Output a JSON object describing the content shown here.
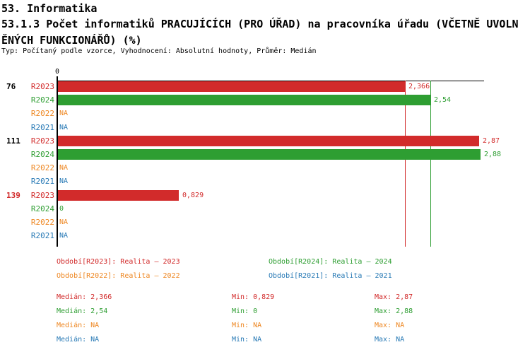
{
  "header": {
    "section": "53. Informatika",
    "title_line1": "53.1.3 Počet informatiků PRACUJÍCÍCH (PRO ÚŘAD) na pracovníka úřadu (VČETNĚ UVOLN",
    "title_line2": "ĚNÝCH FUNKCIONÁŘŮ) (%)",
    "meta": "Typ: Počítaný podle vzorce, Vyhodnocení: Absolutní hodnoty, Průměr: Medián"
  },
  "colors": {
    "R2023": "#d22b2b",
    "R2024": "#2e9e32",
    "R2022": "#ee8722",
    "R2021": "#2779b5",
    "axis": "#000000"
  },
  "chart_data": {
    "type": "bar",
    "orientation": "horizontal",
    "title": "53.1.3 Počet informatiků PRACUJÍCÍCH (PRO ÚŘAD) na pracovníka úřadu (VČETNĚ UVOLNĚNÝCH FUNKCIONÁŘŮ) (%)",
    "x_axis": {
      "zero_label": "0",
      "xlim": [
        0,
        2.88
      ],
      "grid": false
    },
    "series_order": [
      "R2023",
      "R2024",
      "R2022",
      "R2021"
    ],
    "groups": [
      {
        "label": "76",
        "label_color": "#000000",
        "rows": [
          {
            "series": "R2023",
            "value": 2.366,
            "display": "2,366"
          },
          {
            "series": "R2024",
            "value": 2.54,
            "display": "2,54"
          },
          {
            "series": "R2022",
            "value": null,
            "display": "NA"
          },
          {
            "series": "R2021",
            "value": null,
            "display": "NA"
          }
        ]
      },
      {
        "label": "111",
        "label_color": "#000000",
        "rows": [
          {
            "series": "R2023",
            "value": 2.87,
            "display": "2,87"
          },
          {
            "series": "R2024",
            "value": 2.88,
            "display": "2,88"
          },
          {
            "series": "R2022",
            "value": null,
            "display": "NA"
          },
          {
            "series": "R2021",
            "value": null,
            "display": "NA"
          }
        ]
      },
      {
        "label": "139",
        "label_color": "#d22b2b",
        "rows": [
          {
            "series": "R2023",
            "value": 0.829,
            "display": "0,829"
          },
          {
            "series": "R2024",
            "value": 0,
            "display": "0"
          },
          {
            "series": "R2022",
            "value": null,
            "display": "NA"
          },
          {
            "series": "R2021",
            "value": null,
            "display": "NA"
          }
        ]
      }
    ],
    "median_lines": [
      {
        "series": "R2023",
        "value": 2.366
      },
      {
        "series": "R2024",
        "value": 2.54
      }
    ]
  },
  "legend": {
    "items": [
      {
        "series": "R2023",
        "text": "Období[R2023]: Realita – 2023",
        "col": 0,
        "row": 0
      },
      {
        "series": "R2024",
        "text": "Období[R2024]: Realita – 2024",
        "col": 1,
        "row": 0
      },
      {
        "series": "R2022",
        "text": "Období[R2022]: Realita – 2022",
        "col": 0,
        "row": 1
      },
      {
        "series": "R2021",
        "text": "Období[R2021]: Realita – 2021",
        "col": 1,
        "row": 1
      }
    ]
  },
  "stats": {
    "labels": {
      "median": "Medián",
      "min": "Min",
      "max": "Max"
    },
    "rows": [
      {
        "series": "R2023",
        "median": "2,366",
        "min": "0,829",
        "max": "2,87"
      },
      {
        "series": "R2024",
        "median": "2,54",
        "min": "0",
        "max": "2,88"
      },
      {
        "series": "R2022",
        "median": "NA",
        "min": "NA",
        "max": "NA"
      },
      {
        "series": "R2021",
        "median": "NA",
        "min": "NA",
        "max": "NA"
      }
    ]
  }
}
